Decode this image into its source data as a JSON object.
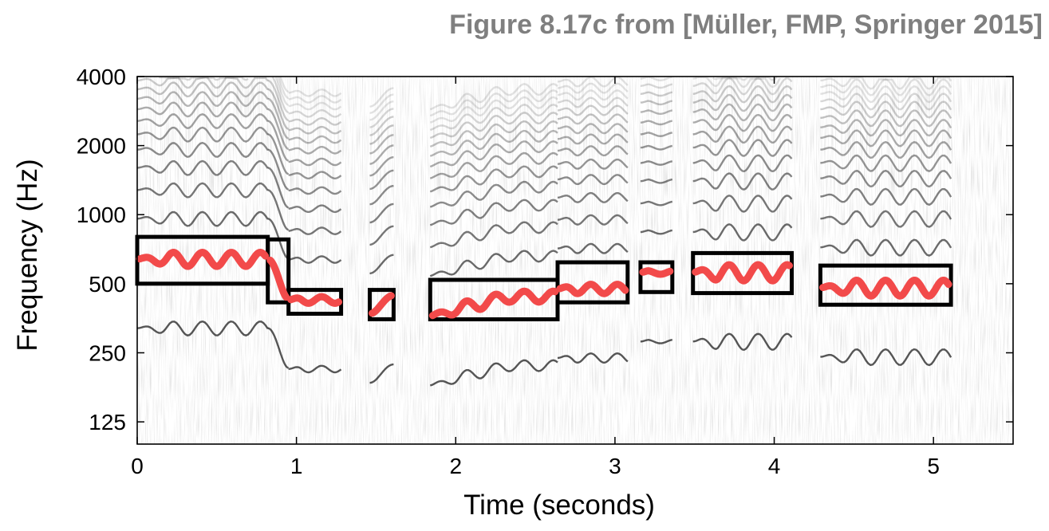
{
  "figure_caption": "Figure 8.17c from [Müller, FMP, Springer 2015]",
  "chart_data": {
    "type": "heatmap",
    "subtype": "log-frequency spectrogram with melody trajectory and bounding boxes",
    "xlabel": "Time (seconds)",
    "ylabel": "Frequency (Hz)",
    "xlim": [
      0,
      5.5
    ],
    "ylim": [
      100,
      4000
    ],
    "y_scale": "log2",
    "x_ticks": [
      0,
      1,
      2,
      3,
      4,
      5
    ],
    "x_tick_labels": [
      "0",
      "1",
      "2",
      "3",
      "4",
      "5"
    ],
    "y_ticks": [
      125,
      250,
      500,
      1000,
      2000,
      4000
    ],
    "y_tick_labels": [
      "125",
      "250",
      "500",
      "1000",
      "2000",
      "4000"
    ],
    "colormap": "gray-reversed",
    "colors": {
      "trajectory": "#f24a4a",
      "box": "#000000",
      "caption": "#7f7f7f"
    },
    "notes": [
      {
        "t0": 0.0,
        "t1": 0.82,
        "f0": 500,
        "f1": 800,
        "base": 640,
        "vib": 45,
        "rate": 5.5
      },
      {
        "t0": 0.82,
        "t1": 0.95,
        "f0": 415,
        "f1": 780,
        "glide_from": 640,
        "glide_to": 430
      },
      {
        "t0": 0.95,
        "t1": 1.28,
        "f0": 370,
        "f1": 470,
        "base": 425,
        "vib": 14,
        "rate": 6.0
      },
      {
        "t0": 1.46,
        "t1": 1.61,
        "f0": 350,
        "f1": 470,
        "glide_from": 370,
        "glide_to": 445
      },
      {
        "t0": 1.84,
        "t1": 2.64,
        "f0": 350,
        "f1": 520,
        "base": 410,
        "vib": 24,
        "rate": 5.5,
        "rise_from": 360,
        "rise_to": 440
      },
      {
        "t0": 2.64,
        "t1": 3.08,
        "f0": 415,
        "f1": 620,
        "base": 475,
        "vib": 22,
        "rate": 6.0
      },
      {
        "t0": 3.16,
        "t1": 3.36,
        "f0": 460,
        "f1": 620,
        "base": 560,
        "vib": 10,
        "rate": 6.0
      },
      {
        "t0": 3.49,
        "t1": 4.11,
        "f0": 455,
        "f1": 680,
        "base": 560,
        "vib": 45,
        "rate": 5.5
      },
      {
        "t0": 4.29,
        "t1": 5.11,
        "f0": 405,
        "f1": 600,
        "base": 480,
        "vib": 38,
        "rate": 5.5
      }
    ]
  }
}
